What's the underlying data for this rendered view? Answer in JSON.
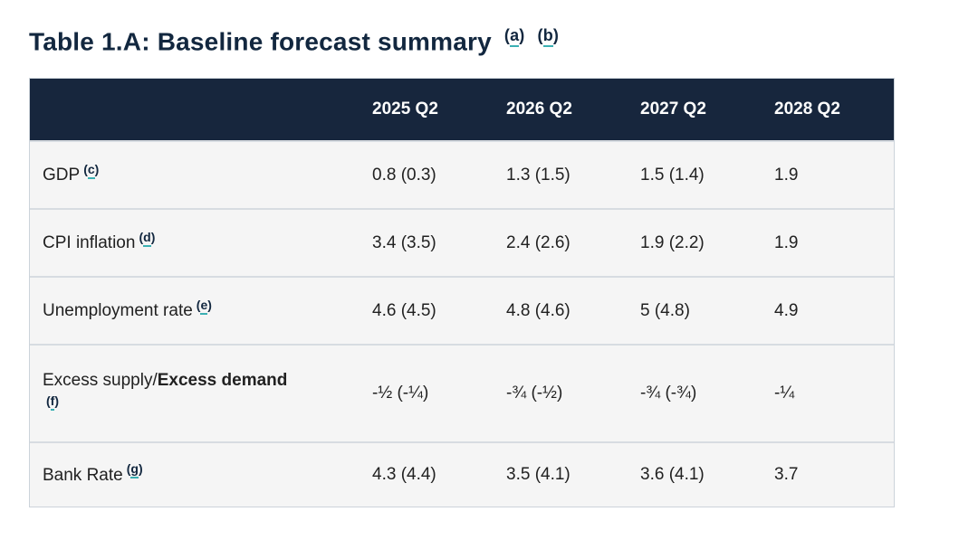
{
  "title": {
    "text": "Table 1.A: Baseline forecast summary",
    "footnotes": [
      "a",
      "b"
    ]
  },
  "colors": {
    "header_navy": "#17263d",
    "title_navy": "#12273f",
    "teal_underline": "#3bb0b3",
    "row_background": "#f5f5f5",
    "divider": "#d7dce1",
    "body_text": "#212121"
  },
  "table": {
    "column_headers": [
      "2025 Q2",
      "2026 Q2",
      "2027 Q2",
      "2028 Q2"
    ],
    "rows": [
      {
        "label": "GDP",
        "footnote": "c",
        "values": [
          "0.8 (0.3)",
          "1.3 (1.5)",
          "1.5 (1.4)",
          "1.9"
        ]
      },
      {
        "label": "CPI inflation",
        "footnote": "d",
        "values": [
          "3.4 (3.5)",
          "2.4 (2.6)",
          "1.9 (2.2)",
          "1.9"
        ]
      },
      {
        "label": "Unemployment rate",
        "footnote": "e",
        "values": [
          "4.6 (4.5)",
          "4.8 (4.6)",
          "5 (4.8)",
          "4.9"
        ]
      },
      {
        "label_normal": "Excess supply/",
        "label_bold": "Excess demand",
        "footnote": "f",
        "values": [
          "-½ (-¼)",
          "-¾ (-½)",
          "-¾ (-¾)",
          "-¼"
        ]
      },
      {
        "label": "Bank Rate",
        "footnote": "g",
        "values": [
          "4.3 (4.4)",
          "3.5 (4.1)",
          "3.6 (4.1)",
          "3.7"
        ]
      }
    ]
  }
}
